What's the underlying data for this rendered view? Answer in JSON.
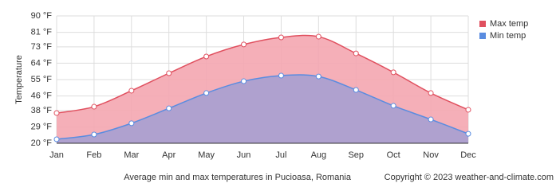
{
  "chart_data": {
    "type": "area",
    "y_label": "Temperature",
    "caption": "Average min and max temperatures in Pucioasa, Romania",
    "copyright": "Copyright © 2023  weather-and-climate.com",
    "categories": [
      "Jan",
      "Feb",
      "Mar",
      "Apr",
      "May",
      "Jun",
      "Jul",
      "Aug",
      "Sep",
      "Oct",
      "Nov",
      "Dec"
    ],
    "series": [
      {
        "name": "Max temp",
        "color": "#e0505f",
        "fill": "#f4a6b0",
        "values": [
          36.6,
          40.1,
          48.9,
          58.5,
          67.7,
          74.3,
          78.2,
          78.6,
          69.4,
          59.0,
          47.6,
          38.4
        ]
      },
      {
        "name": "Min temp",
        "color": "#5a8ce0",
        "fill": "#a7a0d2",
        "values": [
          22.2,
          24.8,
          31.0,
          39.2,
          47.6,
          54.1,
          57.2,
          56.7,
          49.3,
          40.6,
          33.1,
          25.2
        ]
      }
    ],
    "ylim": [
      20,
      90
    ],
    "yticks": [
      {
        "value": 20,
        "label": "20 °F"
      },
      {
        "value": 29,
        "label": "29 °F"
      },
      {
        "value": 38,
        "label": "38 °F"
      },
      {
        "value": 46,
        "label": "46 °F"
      },
      {
        "value": 55,
        "label": "55 °F"
      },
      {
        "value": 64,
        "label": "64 °F"
      },
      {
        "value": 73,
        "label": "73 °F"
      },
      {
        "value": 81,
        "label": "81 °F"
      },
      {
        "value": 90,
        "label": "90 °F"
      }
    ],
    "grid": true,
    "legend": "top-right"
  }
}
